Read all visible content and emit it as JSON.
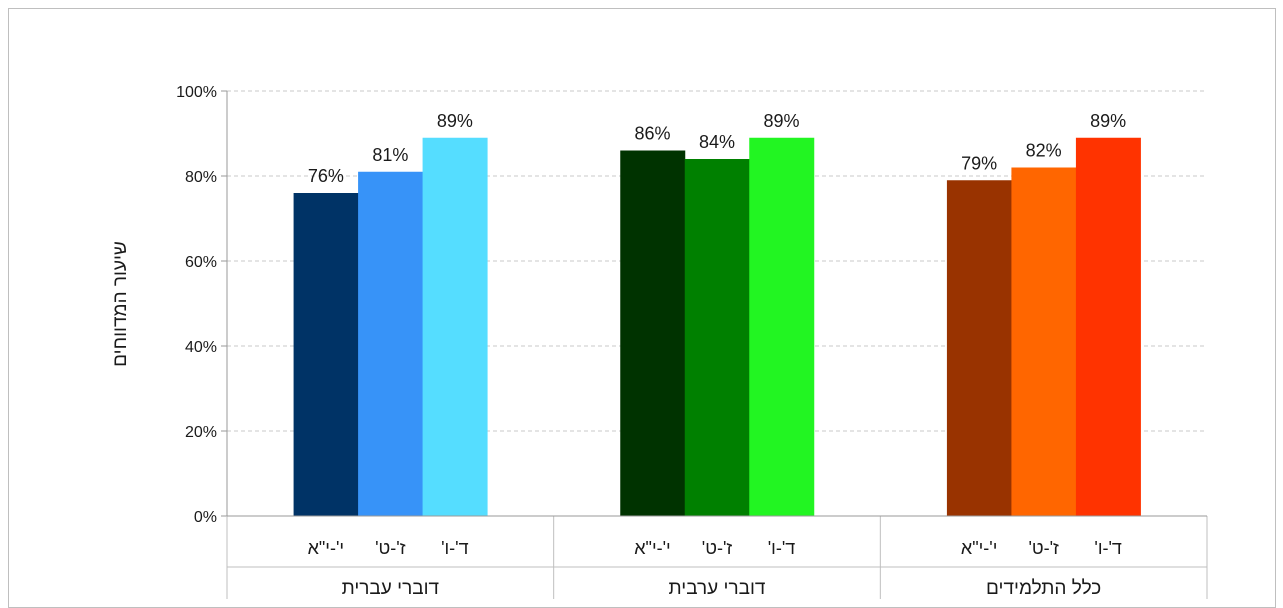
{
  "chart_data": {
    "type": "bar",
    "ylabel": "שיעור המדווחים",
    "ylim": [
      0,
      100
    ],
    "y_ticks": [
      "0%",
      "20%",
      "40%",
      "60%",
      "80%",
      "100%"
    ],
    "grid": true,
    "groups": [
      {
        "name": "דוברי עברית",
        "categories": [
          "ד'-ו'",
          "ז'-ט'",
          "י'-י\"א"
        ],
        "values": [
          76,
          81,
          89
        ],
        "labels": [
          "76%",
          "81%",
          "89%"
        ],
        "colors": [
          "#003366",
          "#3793F8",
          "#55DDFF"
        ]
      },
      {
        "name": "דוברי ערבית",
        "categories": [
          "ד'-ו'",
          "ז'-ט'",
          "י'-י\"א"
        ],
        "values": [
          86,
          84,
          89
        ],
        "labels": [
          "86%",
          "84%",
          "89%"
        ],
        "colors": [
          "#003300",
          "#008000",
          "#22F522"
        ]
      },
      {
        "name": "כלל התלמידים",
        "categories": [
          "ד'-ו'",
          "ז'-ט'",
          "י'-י\"א"
        ],
        "values": [
          79,
          82,
          89
        ],
        "labels": [
          "79%",
          "82%",
          "89%"
        ],
        "colors": [
          "#993300",
          "#FF6600",
          "#FF3300"
        ]
      }
    ]
  }
}
